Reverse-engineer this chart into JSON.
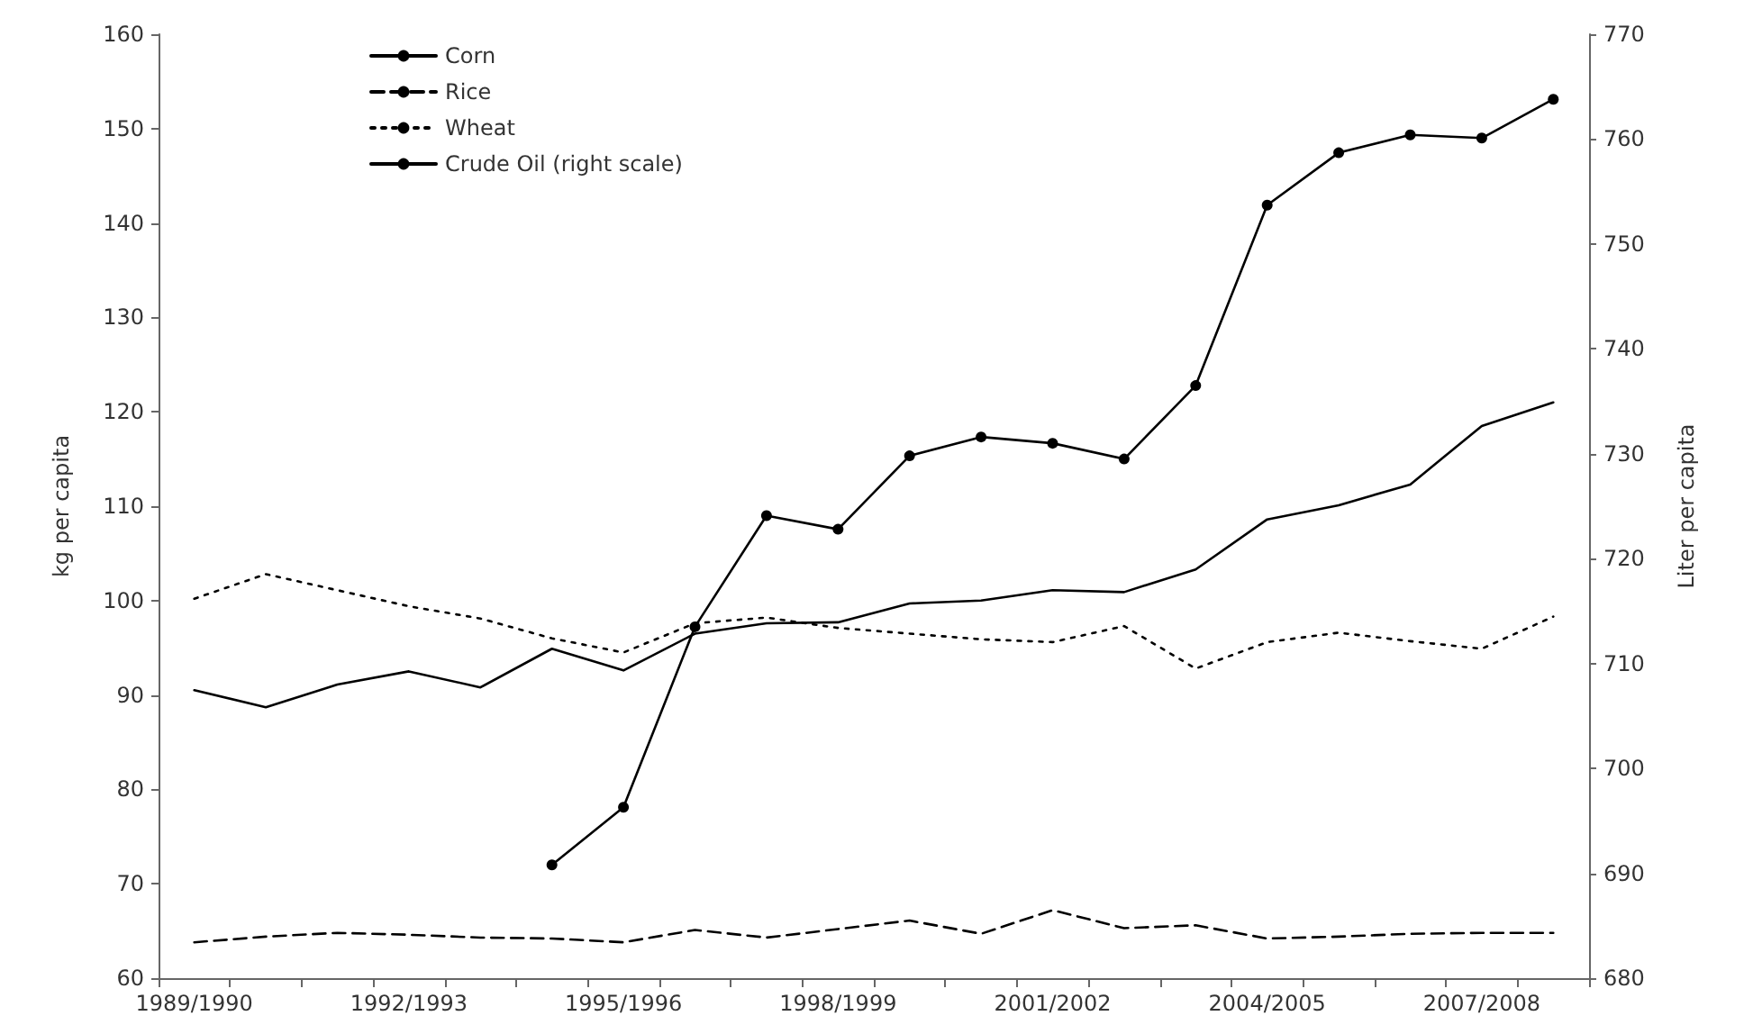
{
  "chart_data": {
    "type": "line",
    "categories": [
      "1989/1990",
      null,
      null,
      "1992/1993",
      null,
      null,
      "1995/1996",
      null,
      null,
      "1998/1999",
      null,
      null,
      "2001/2002",
      null,
      null,
      "2004/2005",
      null,
      null,
      "2007/2008",
      null
    ],
    "series": [
      {
        "name": "Corn",
        "color": "#000000",
        "line_style": "solid",
        "marker": "none",
        "values": [
          90.5,
          88.7,
          91.1,
          92.5,
          90.8,
          94.9,
          92.6,
          96.5,
          97.6,
          97.7,
          99.7,
          100.0,
          101.1,
          100.9,
          103.3,
          108.6,
          110.1,
          112.3,
          118.5,
          121.0
        ]
      },
      {
        "name": "Rice",
        "color": "#000000",
        "line_style": "dashed",
        "marker": "none",
        "values": [
          63.8,
          64.4,
          64.8,
          64.6,
          64.3,
          64.2,
          63.8,
          65.1,
          64.3,
          65.2,
          66.1,
          64.7,
          67.2,
          65.3,
          65.6,
          64.2,
          64.4,
          64.7,
          64.8,
          64.8
        ]
      },
      {
        "name": "Wheat",
        "color": "#000000",
        "line_style": "dotted",
        "marker": "none",
        "values": [
          100.2,
          102.8,
          101.1,
          99.4,
          98.1,
          96.0,
          94.5,
          97.6,
          98.2,
          97.1,
          96.5,
          95.9,
          95.6,
          97.3,
          92.8,
          95.6,
          96.6,
          95.7,
          94.9,
          98.3
        ]
      },
      {
        "name": "Crude Oil (right scale)",
        "color": "#000000",
        "line_style": "solid",
        "marker": "circle",
        "axis": "y2",
        "values": [
          null,
          null,
          null,
          null,
          null,
          690.8,
          696.3,
          713.5,
          724.1,
          722.8,
          729.8,
          731.6,
          731.0,
          729.5,
          736.5,
          753.7,
          758.7,
          760.4,
          760.1,
          763.8
        ]
      }
    ],
    "ylabel": "kg per capita",
    "y2label": "Liter per capita",
    "ylim": [
      60,
      160
    ],
    "yticks": [
      60,
      70,
      80,
      90,
      100,
      110,
      120,
      130,
      140,
      150,
      160
    ],
    "y2lim": [
      680,
      770
    ],
    "y2ticks": [
      680,
      690,
      700,
      710,
      720,
      730,
      740,
      750,
      760,
      770
    ],
    "grid": false,
    "legend": "top left"
  }
}
